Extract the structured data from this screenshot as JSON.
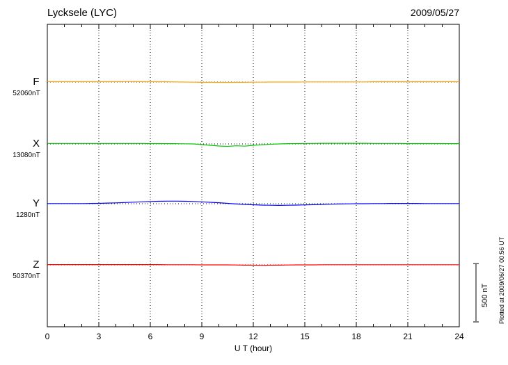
{
  "header": {
    "title": "Lycksele (LYC)",
    "date": "2009/05/27"
  },
  "axis": {
    "xlabel": "U T (hour)",
    "ticks": [
      0,
      3,
      6,
      9,
      12,
      15,
      18,
      21,
      24
    ]
  },
  "scale_bar_label": "500 nT",
  "plotted_at": "Plotted at 2009/06/27 00:56 UT",
  "chart_data": {
    "type": "line",
    "title": "Lycksele (LYC)",
    "date": "2009/05/27",
    "xlabel": "U T (hour)",
    "x_range": [
      0,
      24
    ],
    "x_tick_labels": [
      0,
      3,
      6,
      9,
      12,
      15,
      18,
      21,
      24
    ],
    "grid": "dotted vertical at 3-hour intervals, dotted horizontal baseline per component",
    "scale_bar_nT": 500,
    "hours": [
      0,
      0.5,
      1,
      1.5,
      2,
      2.5,
      3,
      3.5,
      4,
      4.5,
      5,
      5.5,
      6,
      6.5,
      7,
      7.5,
      8,
      8.5,
      9,
      9.5,
      10,
      10.5,
      11,
      11.5,
      12,
      12.5,
      13,
      13.5,
      14,
      14.5,
      15,
      15.5,
      16,
      16.5,
      17,
      17.5,
      18,
      18.5,
      19,
      19.5,
      20,
      20.5,
      21,
      21.5,
      22,
      22.5,
      23,
      23.5,
      24
    ],
    "series": [
      {
        "name": "F",
        "base_value_label": "52060nT",
        "base_value_nT": 52060,
        "color": "#FFA500",
        "deviation_nT": [
          3,
          3,
          3,
          3,
          3,
          3,
          3,
          3,
          3,
          4,
          4,
          3,
          3,
          2,
          2,
          1,
          0,
          -1,
          -2,
          -2,
          -3,
          -3,
          -2,
          -2,
          -1,
          -1,
          0,
          0,
          0,
          0,
          1,
          1,
          1,
          1,
          1,
          1,
          1,
          1,
          2,
          2,
          2,
          2,
          2,
          2,
          2,
          2,
          3,
          3,
          3
        ]
      },
      {
        "name": "X",
        "base_value_label": "13080nT",
        "base_value_nT": 13080,
        "color": "#00C800",
        "deviation_nT": [
          4,
          4,
          4,
          4,
          4,
          4,
          4,
          4,
          4,
          4,
          4,
          4,
          3,
          3,
          2,
          2,
          1,
          0,
          -6,
          -12,
          -18,
          -21,
          -16,
          -19,
          -12,
          -7,
          -3,
          0,
          2,
          3,
          4,
          4,
          5,
          5,
          5,
          5,
          5,
          5,
          4,
          4,
          4,
          4,
          3,
          3,
          3,
          3,
          3,
          2,
          2
        ]
      },
      {
        "name": "Y",
        "base_value_label": "1280nT",
        "base_value_nT": 1280,
        "color": "#0000FF",
        "deviation_nT": [
          1,
          1,
          1,
          1,
          1,
          2,
          3,
          5,
          7,
          10,
          13,
          16,
          19,
          21,
          22,
          22,
          21,
          19,
          16,
          12,
          8,
          3,
          -2,
          -6,
          -9,
          -12,
          -13,
          -14,
          -13,
          -12,
          -10,
          -8,
          -6,
          -4,
          -2,
          -1,
          0,
          0,
          1,
          1,
          2,
          2,
          2,
          2,
          1,
          1,
          1,
          1,
          1
        ]
      },
      {
        "name": "Z",
        "base_value_label": "50370nT",
        "base_value_nT": 50370,
        "color": "#FF0000",
        "deviation_nT": [
          2,
          2,
          2,
          2,
          2,
          2,
          2,
          2,
          2,
          2,
          2,
          2,
          2,
          2,
          1,
          1,
          1,
          1,
          0,
          0,
          0,
          0,
          -1,
          -2,
          -3,
          -4,
          -3,
          -2,
          -1,
          0,
          0,
          0,
          1,
          1,
          1,
          1,
          1,
          1,
          1,
          1,
          1,
          1,
          1,
          1,
          1,
          1,
          1,
          1,
          1
        ]
      }
    ]
  }
}
